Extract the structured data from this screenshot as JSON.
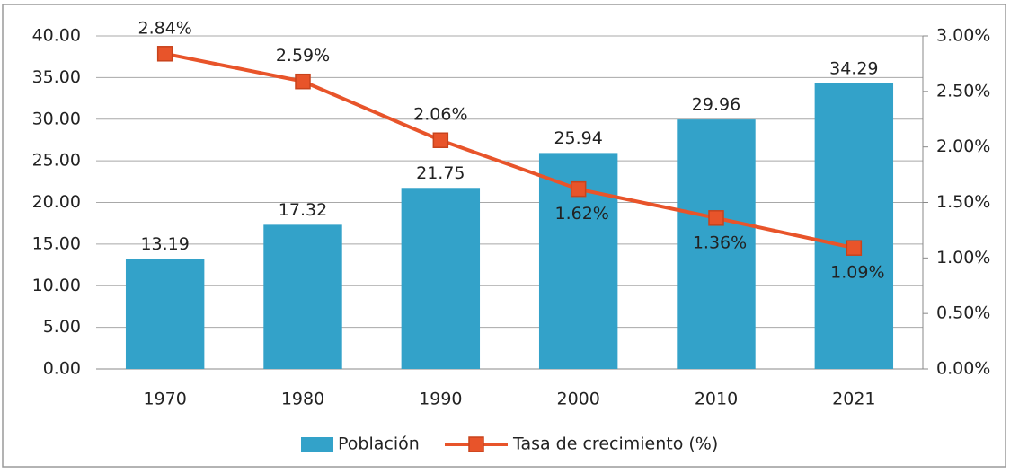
{
  "chart_data": {
    "type": "bar",
    "categories": [
      "1970",
      "1980",
      "1990",
      "2000",
      "2010",
      "2021"
    ],
    "series": [
      {
        "name": "Población",
        "type": "bar",
        "color": "#33a2c9",
        "values": [
          13.19,
          17.32,
          21.75,
          25.94,
          29.96,
          34.29
        ]
      },
      {
        "name": "Tasa de crecimiento (%)",
        "type": "line",
        "axis": "y2",
        "color": "#e8542a",
        "values": [
          2.84,
          2.59,
          2.06,
          1.62,
          1.36,
          1.09
        ],
        "value_labels": [
          "2.84%",
          "2.59%",
          "2.06%",
          "1.62%",
          "1.36%",
          "1.09%"
        ]
      }
    ],
    "ylim": [
      0,
      40
    ],
    "yticks": [
      {
        "value": 0,
        "label": "0.00"
      },
      {
        "value": 5,
        "label": "5.00"
      },
      {
        "value": 10,
        "label": "10.00"
      },
      {
        "value": 15,
        "label": "15.00"
      },
      {
        "value": 20,
        "label": "20.00"
      },
      {
        "value": 25,
        "label": "25.00"
      },
      {
        "value": 30,
        "label": "30.00"
      },
      {
        "value": 35,
        "label": "35.00"
      },
      {
        "value": 40,
        "label": "40.00"
      }
    ],
    "y2lim": [
      0,
      3
    ],
    "y2ticks": [
      {
        "value": 0,
        "label": "0.00%"
      },
      {
        "value": 0.5,
        "label": "0.50%"
      },
      {
        "value": 1,
        "label": "1.00%"
      },
      {
        "value": 1.5,
        "label": "1.50%"
      },
      {
        "value": 2,
        "label": "2.00%"
      },
      {
        "value": 2.5,
        "label": "2.50%"
      },
      {
        "value": 3,
        "label": "3.00%"
      }
    ],
    "grid": true,
    "legend": "bottom"
  }
}
